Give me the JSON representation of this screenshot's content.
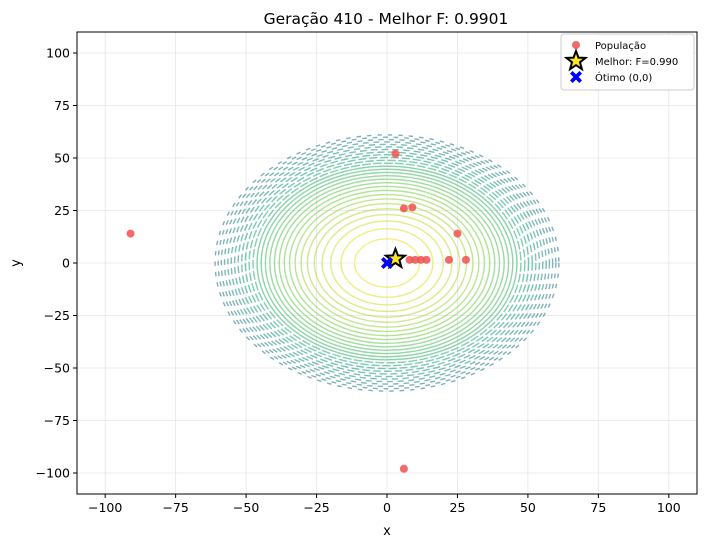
{
  "chart_data": {
    "type": "scatter",
    "title": "Geração 410 - Melhor F: 0.9901",
    "xlabel": "x",
    "ylabel": "y",
    "xlim": [
      -110,
      110
    ],
    "ylim": [
      -110,
      110
    ],
    "xticks": [
      -100,
      -75,
      -50,
      -25,
      0,
      25,
      50,
      75,
      100
    ],
    "yticks": [
      -100,
      -75,
      -50,
      -25,
      0,
      25,
      50,
      75,
      100
    ],
    "grid": true,
    "legend_position": "top-right",
    "contour": {
      "description_visible": false,
      "center": [
        0,
        0
      ],
      "outer_radius": 61,
      "levels": 28,
      "colors": [
        "#2a788e",
        "#22a884",
        "#7ad151",
        "#fde725"
      ]
    },
    "series": [
      {
        "name": "População",
        "marker": "circle",
        "color": "#f05050",
        "points": [
          [
            3,
            52
          ],
          [
            -91,
            14
          ],
          [
            6,
            26
          ],
          [
            9,
            26.5
          ],
          [
            25,
            14
          ],
          [
            22,
            1.5
          ],
          [
            28,
            1.5
          ],
          [
            8,
            1.5
          ],
          [
            10,
            1.5
          ],
          [
            12,
            1.5
          ],
          [
            14,
            1.5
          ],
          [
            6,
            -98
          ]
        ]
      },
      {
        "name": "Melhor: F=0.990",
        "marker": "star",
        "color": "#fde725",
        "edge_color": "#000000",
        "points": [
          [
            3,
            2
          ]
        ]
      },
      {
        "name": "Ótimo (0,0)",
        "marker": "x-filled",
        "color": "#0000ff",
        "points": [
          [
            0,
            0
          ]
        ]
      }
    ]
  }
}
